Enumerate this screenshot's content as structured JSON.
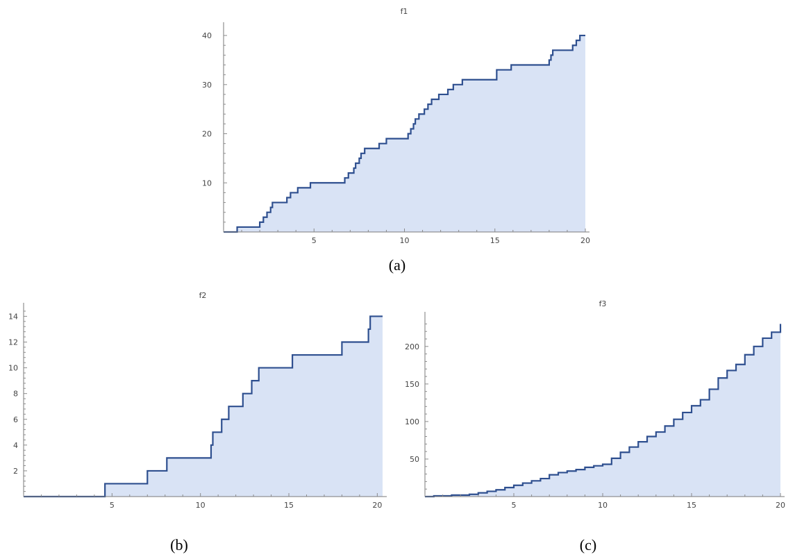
{
  "colors": {
    "fill": "#d9e3f5",
    "line": "#2e4f8f",
    "axis": "#7a7a7a",
    "text": "#444444"
  },
  "chart_data": [
    {
      "type": "area",
      "style": "step",
      "title": "f1",
      "caption": "(a)",
      "xlabel": "",
      "ylabel": "",
      "xlim": [
        0,
        20
      ],
      "ylim": [
        0,
        41
      ],
      "xticks": [
        5,
        10,
        15,
        20
      ],
      "yticks": [
        10,
        20,
        30,
        40
      ],
      "x": [
        0,
        0.75,
        2.0,
        2.2,
        2.4,
        2.6,
        2.7,
        3.5,
        3.7,
        4.1,
        4.8,
        6.7,
        6.9,
        7.2,
        7.3,
        7.5,
        7.6,
        7.8,
        8.1,
        8.6,
        9.0,
        10.2,
        10.35,
        10.5,
        10.6,
        10.8,
        11.1,
        11.3,
        11.5,
        11.9,
        12.1,
        12.4,
        12.7,
        12.9,
        13.2,
        13.5,
        14.4,
        15.1,
        15.9,
        18.0,
        18.1,
        18.2,
        18.5,
        19.3,
        19.5,
        19.7,
        19.9,
        20.0
      ],
      "values": [
        0,
        1,
        2,
        3,
        4,
        5,
        6,
        7,
        8,
        9,
        10,
        11,
        12,
        13,
        14,
        15,
        16,
        17,
        17,
        18,
        19,
        20,
        21,
        22,
        23,
        24,
        25,
        26,
        27,
        28,
        28,
        29,
        30,
        30,
        31,
        31,
        31,
        33,
        34,
        35,
        36,
        37,
        37,
        38,
        39,
        40,
        40,
        40
      ]
    },
    {
      "type": "area",
      "style": "step",
      "title": "f2",
      "caption": "(b)",
      "xlabel": "",
      "ylabel": "",
      "xlim": [
        0,
        20.3
      ],
      "ylim": [
        0,
        14.4
      ],
      "xticks": [
        5,
        10,
        15,
        20
      ],
      "yticks": [
        2,
        4,
        6,
        8,
        10,
        12,
        14
      ],
      "x": [
        0,
        4.6,
        7.0,
        8.1,
        10.6,
        10.7,
        11.2,
        11.6,
        12.4,
        12.9,
        13.3,
        15.2,
        18.0,
        19.5,
        19.6,
        19.7,
        20.3
      ],
      "values": [
        0,
        1,
        2,
        3,
        4,
        5,
        6,
        7,
        8,
        9,
        10,
        11,
        12,
        13,
        14,
        14,
        14
      ]
    },
    {
      "type": "area",
      "style": "step",
      "title": "f3",
      "caption": "(c)",
      "xlabel": "",
      "ylabel": "",
      "xlim": [
        0,
        20
      ],
      "ylim": [
        0,
        235
      ],
      "xticks": [
        5,
        10,
        15,
        20
      ],
      "yticks": [
        50,
        100,
        150,
        200
      ],
      "x": [
        0,
        0.5,
        1,
        1.5,
        2,
        2.5,
        3,
        3.5,
        4,
        4.5,
        5,
        5.5,
        6,
        6.5,
        7,
        7.5,
        8,
        8.5,
        9,
        9.5,
        10,
        10.5,
        11,
        11.5,
        12,
        12.5,
        13,
        13.5,
        14,
        14.5,
        15,
        15.5,
        16,
        16.5,
        17,
        17.5,
        18,
        18.5,
        19,
        19.5,
        20
      ],
      "values": [
        0,
        1,
        1,
        2,
        2,
        3,
        5,
        7,
        9,
        12,
        15,
        18,
        21,
        24,
        29,
        32,
        34,
        36,
        39,
        41,
        43,
        51,
        59,
        66,
        73,
        80,
        86,
        94,
        103,
        112,
        121,
        129,
        143,
        158,
        168,
        176,
        189,
        200,
        211,
        219,
        230
      ]
    }
  ]
}
